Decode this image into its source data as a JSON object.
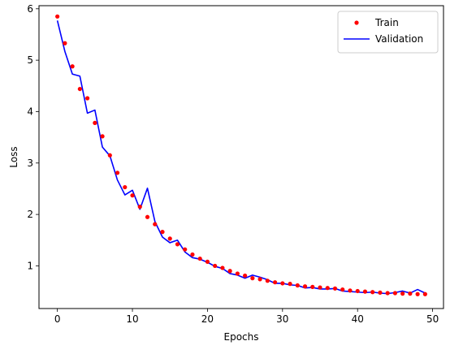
{
  "chart_data": {
    "type": "line",
    "title": "",
    "xlabel": "Epochs",
    "ylabel": "Loss",
    "xlim": [
      -2.45,
      51.45
    ],
    "ylim": [
      0.17,
      6.06
    ],
    "xticks": [
      0,
      10,
      20,
      30,
      40,
      50
    ],
    "yticks": [
      1,
      2,
      3,
      4,
      5,
      6
    ],
    "xtick_labels": [
      "0",
      "10",
      "20",
      "30",
      "40",
      "50"
    ],
    "ytick_labels": [
      "1",
      "2",
      "3",
      "4",
      "5",
      "6"
    ],
    "grid": false,
    "legend": "top-right",
    "x": [
      0,
      1,
      2,
      3,
      4,
      5,
      6,
      7,
      8,
      9,
      10,
      11,
      12,
      13,
      14,
      15,
      16,
      17,
      18,
      19,
      20,
      21,
      22,
      23,
      24,
      25,
      26,
      27,
      28,
      29,
      30,
      31,
      32,
      33,
      34,
      35,
      36,
      37,
      38,
      39,
      40,
      41,
      42,
      43,
      44,
      45,
      46,
      47,
      48,
      49
    ],
    "series": [
      {
        "name": "Train",
        "style": "points",
        "color": "#ff0000",
        "values": [
          5.85,
          5.33,
          4.88,
          4.44,
          4.26,
          3.78,
          3.52,
          3.15,
          2.81,
          2.53,
          2.37,
          2.15,
          1.95,
          1.81,
          1.66,
          1.53,
          1.42,
          1.32,
          1.22,
          1.14,
          1.08,
          1.0,
          0.96,
          0.9,
          0.85,
          0.81,
          0.76,
          0.74,
          0.71,
          0.68,
          0.66,
          0.65,
          0.62,
          0.6,
          0.59,
          0.58,
          0.57,
          0.56,
          0.54,
          0.52,
          0.51,
          0.5,
          0.49,
          0.48,
          0.47,
          0.47,
          0.46,
          0.46,
          0.45,
          0.45
        ]
      },
      {
        "name": "Validation",
        "style": "line",
        "color": "#0000ff",
        "values": [
          5.77,
          5.17,
          4.73,
          4.69,
          3.97,
          4.03,
          3.31,
          3.14,
          2.67,
          2.38,
          2.47,
          2.1,
          2.51,
          1.86,
          1.56,
          1.45,
          1.5,
          1.27,
          1.16,
          1.13,
          1.07,
          0.99,
          0.95,
          0.85,
          0.82,
          0.76,
          0.82,
          0.78,
          0.73,
          0.66,
          0.66,
          0.63,
          0.62,
          0.57,
          0.58,
          0.55,
          0.55,
          0.56,
          0.51,
          0.5,
          0.49,
          0.48,
          0.49,
          0.47,
          0.46,
          0.48,
          0.51,
          0.47,
          0.54,
          0.47
        ]
      }
    ]
  }
}
